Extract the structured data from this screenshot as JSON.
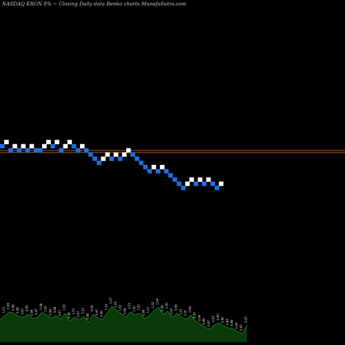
{
  "chart_data": {
    "type": "renko",
    "title": "NASDAQ KRON  8% ~  Closing Daily data  Renko  charts MunafaSutra.com",
    "colors": {
      "background": "#000000",
      "up_brick": "#ffffff",
      "down_brick": "#1e6fe0",
      "level_line": "#b35a1f",
      "volume_fill": "#0a3a0a",
      "volume_edge": "#1f8a1f"
    },
    "level_lines": [
      1,
      0.5
    ],
    "bricks": [
      {
        "level": 2,
        "dir": "down"
      },
      {
        "level": 3,
        "dir": "up"
      },
      {
        "level": 1,
        "dir": "down"
      },
      {
        "level": 2,
        "dir": "up"
      },
      {
        "level": 1,
        "dir": "down"
      },
      {
        "level": 2,
        "dir": "up"
      },
      {
        "level": 1,
        "dir": "down"
      },
      {
        "level": 2,
        "dir": "up"
      },
      {
        "level": 1,
        "dir": "down"
      },
      {
        "level": 1,
        "dir": "down"
      },
      {
        "level": 2,
        "dir": "up"
      },
      {
        "level": 3,
        "dir": "up"
      },
      {
        "level": 2,
        "dir": "down"
      },
      {
        "level": 3,
        "dir": "up"
      },
      {
        "level": 1,
        "dir": "down"
      },
      {
        "level": 2,
        "dir": "up"
      },
      {
        "level": 3,
        "dir": "up"
      },
      {
        "level": 2,
        "dir": "down"
      },
      {
        "level": 1,
        "dir": "down"
      },
      {
        "level": 2,
        "dir": "up"
      },
      {
        "level": 1,
        "dir": "down"
      },
      {
        "level": 0,
        "dir": "down"
      },
      {
        "level": -1,
        "dir": "down"
      },
      {
        "level": -2,
        "dir": "down"
      },
      {
        "level": -1,
        "dir": "up"
      },
      {
        "level": 0,
        "dir": "up"
      },
      {
        "level": -1,
        "dir": "down"
      },
      {
        "level": 0,
        "dir": "up"
      },
      {
        "level": -1,
        "dir": "down"
      },
      {
        "level": 0,
        "dir": "up"
      },
      {
        "level": 1,
        "dir": "up"
      },
      {
        "level": 0,
        "dir": "down"
      },
      {
        "level": -1,
        "dir": "down"
      },
      {
        "level": -2,
        "dir": "down"
      },
      {
        "level": -3,
        "dir": "down"
      },
      {
        "level": -4,
        "dir": "down"
      },
      {
        "level": -3,
        "dir": "up"
      },
      {
        "level": -4,
        "dir": "down"
      },
      {
        "level": -3,
        "dir": "up"
      },
      {
        "level": -4,
        "dir": "down"
      },
      {
        "level": -5,
        "dir": "down"
      },
      {
        "level": -6,
        "dir": "down"
      },
      {
        "level": -7,
        "dir": "down"
      },
      {
        "level": -8,
        "dir": "down"
      },
      {
        "level": -7,
        "dir": "up"
      },
      {
        "level": -6,
        "dir": "up"
      },
      {
        "level": -7,
        "dir": "down"
      },
      {
        "level": -6,
        "dir": "up"
      },
      {
        "level": -7,
        "dir": "down"
      },
      {
        "level": -6,
        "dir": "up"
      },
      {
        "level": -7,
        "dir": "down"
      },
      {
        "level": -8,
        "dir": "down"
      },
      {
        "level": -7,
        "dir": "up"
      }
    ],
    "volume": {
      "values": [
        0.46,
        0.55,
        0.63,
        0.6,
        0.54,
        0.52,
        0.58,
        0.49,
        0.51,
        0.62,
        0.57,
        0.5,
        0.55,
        0.48,
        0.6,
        0.44,
        0.52,
        0.46,
        0.53,
        0.41,
        0.58,
        0.5,
        0.47,
        0.61,
        0.74,
        0.66,
        0.59,
        0.52,
        0.63,
        0.57,
        0.6,
        0.49,
        0.55,
        0.65,
        0.72,
        0.58,
        0.64,
        0.52,
        0.6,
        0.51,
        0.48,
        0.56,
        0.44,
        0.38,
        0.31,
        0.27,
        0.36,
        0.4,
        0.34,
        0.3,
        0.28,
        0.22,
        0.18,
        0.35
      ],
      "labels": [
        "0.96",
        "1.01",
        "0.99",
        "0.96",
        "0.98",
        "0.97",
        "0.99",
        "0.96",
        "0.97",
        "0.98",
        "1.00",
        "0.96",
        "0.98",
        "0.97",
        "1.00",
        "0.96",
        "1.01",
        "0.97",
        "1.02",
        "0.98",
        "0.99",
        "0.97",
        "0.96",
        "1.03",
        "1.07",
        "1.05",
        "1.02",
        "0.99",
        "1.03",
        "1.00",
        "1.02",
        "0.96",
        "1.01",
        "1.02",
        "1.04",
        "0.98",
        "1.00",
        "0.97",
        "0.96",
        "1.01",
        "1.00",
        "0.96",
        "0.97",
        "0.94",
        "0.89",
        "0.87",
        "0.93",
        "0.90",
        "0.90",
        "0.88",
        "0.89",
        "0.90",
        "0.87",
        "0.87"
      ]
    }
  }
}
